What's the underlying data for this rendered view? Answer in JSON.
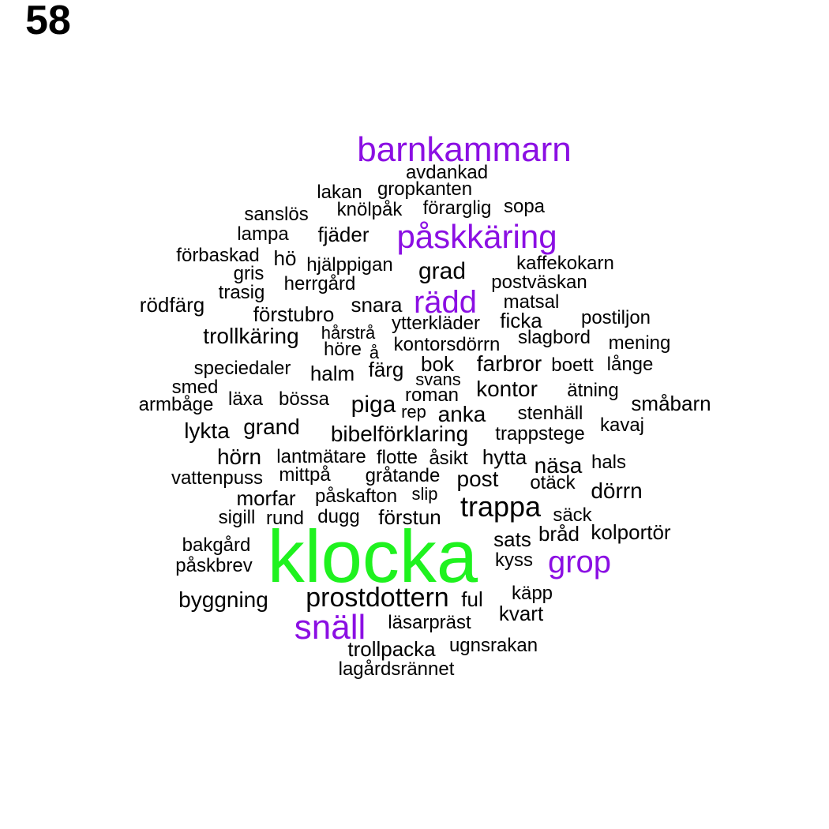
{
  "page_number": "58",
  "colors": {
    "default": "#000000",
    "highlight": "#8b0fe3",
    "top": "#1ff21f"
  },
  "words": [
    {
      "text": "barnkammarn",
      "color": "highlight"
    },
    {
      "text": "avdankad",
      "color": "default"
    },
    {
      "text": "lakan",
      "color": "default"
    },
    {
      "text": "gropkanten",
      "color": "default"
    },
    {
      "text": "sanslös",
      "color": "default"
    },
    {
      "text": "knölpåk",
      "color": "default"
    },
    {
      "text": "förarglig",
      "color": "default"
    },
    {
      "text": "sopa",
      "color": "default"
    },
    {
      "text": "lampa",
      "color": "default"
    },
    {
      "text": "fjäder",
      "color": "default"
    },
    {
      "text": "påskkäring",
      "color": "highlight"
    },
    {
      "text": "förbaskad",
      "color": "default"
    },
    {
      "text": "hö",
      "color": "default"
    },
    {
      "text": "hjälppigan",
      "color": "default"
    },
    {
      "text": "kaffekokarn",
      "color": "default"
    },
    {
      "text": "gris",
      "color": "default"
    },
    {
      "text": "grad",
      "color": "default"
    },
    {
      "text": "herrgård",
      "color": "default"
    },
    {
      "text": "postväskan",
      "color": "default"
    },
    {
      "text": "trasig",
      "color": "default"
    },
    {
      "text": "rödfärg",
      "color": "default"
    },
    {
      "text": "snara",
      "color": "default"
    },
    {
      "text": "rädd",
      "color": "highlight"
    },
    {
      "text": "matsal",
      "color": "default"
    },
    {
      "text": "förstubro",
      "color": "default"
    },
    {
      "text": "postiljon",
      "color": "default"
    },
    {
      "text": "ficka",
      "color": "default"
    },
    {
      "text": "ytterkläder",
      "color": "default"
    },
    {
      "text": "hårstrå",
      "color": "default"
    },
    {
      "text": "trollkäring",
      "color": "default"
    },
    {
      "text": "slagbord",
      "color": "default"
    },
    {
      "text": "mening",
      "color": "default"
    },
    {
      "text": "kontorsdörrn",
      "color": "default"
    },
    {
      "text": "höre",
      "color": "default"
    },
    {
      "text": "å",
      "color": "default"
    },
    {
      "text": "speciedaler",
      "color": "default"
    },
    {
      "text": "halm",
      "color": "default"
    },
    {
      "text": "färg",
      "color": "default"
    },
    {
      "text": "bok",
      "color": "default"
    },
    {
      "text": "farbror",
      "color": "default"
    },
    {
      "text": "boett",
      "color": "default"
    },
    {
      "text": "långe",
      "color": "default"
    },
    {
      "text": "svans",
      "color": "default"
    },
    {
      "text": "smed",
      "color": "default"
    },
    {
      "text": "kontor",
      "color": "default"
    },
    {
      "text": "ätning",
      "color": "default"
    },
    {
      "text": "roman",
      "color": "default"
    },
    {
      "text": "läxa",
      "color": "default"
    },
    {
      "text": "bössa",
      "color": "default"
    },
    {
      "text": "armbåge",
      "color": "default"
    },
    {
      "text": "piga",
      "color": "default"
    },
    {
      "text": "småbarn",
      "color": "default"
    },
    {
      "text": "rep",
      "color": "default"
    },
    {
      "text": "anka",
      "color": "default"
    },
    {
      "text": "stenhäll",
      "color": "default"
    },
    {
      "text": "kavaj",
      "color": "default"
    },
    {
      "text": "grand",
      "color": "default"
    },
    {
      "text": "lykta",
      "color": "default"
    },
    {
      "text": "bibelförklaring",
      "color": "default"
    },
    {
      "text": "trappstege",
      "color": "default"
    },
    {
      "text": "hörn",
      "color": "default"
    },
    {
      "text": "lantmätare",
      "color": "default"
    },
    {
      "text": "flotte",
      "color": "default"
    },
    {
      "text": "åsikt",
      "color": "default"
    },
    {
      "text": "hytta",
      "color": "default"
    },
    {
      "text": "näsa",
      "color": "default"
    },
    {
      "text": "hals",
      "color": "default"
    },
    {
      "text": "vattenpuss",
      "color": "default"
    },
    {
      "text": "mittpå",
      "color": "default"
    },
    {
      "text": "gråtande",
      "color": "default"
    },
    {
      "text": "post",
      "color": "default"
    },
    {
      "text": "otäck",
      "color": "default"
    },
    {
      "text": "morfar",
      "color": "default"
    },
    {
      "text": "påskafton",
      "color": "default"
    },
    {
      "text": "slip",
      "color": "default"
    },
    {
      "text": "dörrn",
      "color": "default"
    },
    {
      "text": "trappa",
      "color": "default"
    },
    {
      "text": "sigill",
      "color": "default"
    },
    {
      "text": "rund",
      "color": "default"
    },
    {
      "text": "dugg",
      "color": "default"
    },
    {
      "text": "förstun",
      "color": "default"
    },
    {
      "text": "säck",
      "color": "default"
    },
    {
      "text": "bråd",
      "color": "default"
    },
    {
      "text": "kolportör",
      "color": "default"
    },
    {
      "text": "bakgård",
      "color": "default"
    },
    {
      "text": "klocka",
      "color": "top"
    },
    {
      "text": "sats",
      "color": "default"
    },
    {
      "text": "påskbrev",
      "color": "default"
    },
    {
      "text": "kyss",
      "color": "default"
    },
    {
      "text": "grop",
      "color": "highlight"
    },
    {
      "text": "käpp",
      "color": "default"
    },
    {
      "text": "byggning",
      "color": "default"
    },
    {
      "text": "prostdottern",
      "color": "default"
    },
    {
      "text": "ful",
      "color": "default"
    },
    {
      "text": "kvart",
      "color": "default"
    },
    {
      "text": "läsarpräst",
      "color": "default"
    },
    {
      "text": "snäll",
      "color": "highlight"
    },
    {
      "text": "trollpacka",
      "color": "default"
    },
    {
      "text": "ugnsrakan",
      "color": "default"
    },
    {
      "text": "lagårdsrännet",
      "color": "default"
    }
  ]
}
